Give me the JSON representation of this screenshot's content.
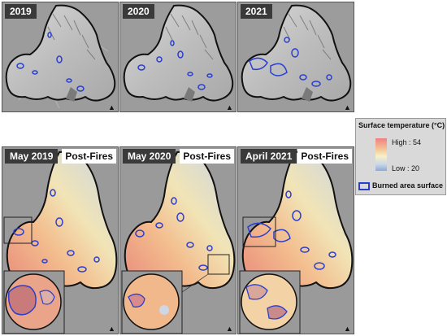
{
  "top_panels": [
    {
      "label": "2019"
    },
    {
      "label": "2020"
    },
    {
      "label": "2021"
    }
  ],
  "bottom_panels": [
    {
      "label": "May 2019",
      "tag": "Post-Fires"
    },
    {
      "label": "May 2020",
      "tag": "Post-Fires"
    },
    {
      "label": "April 2021",
      "tag": "Post-Fires"
    }
  ],
  "north_label": "N",
  "legend": {
    "title": "Surface temperature (°C)",
    "high": "High : 54",
    "low": "Low : 20",
    "burned": "Burned area surface"
  },
  "colors": {
    "burn_outline": "#2b3fcf",
    "hot": "#f08080",
    "mid": "#f4d8a0",
    "cool": "#8aa8d8"
  }
}
